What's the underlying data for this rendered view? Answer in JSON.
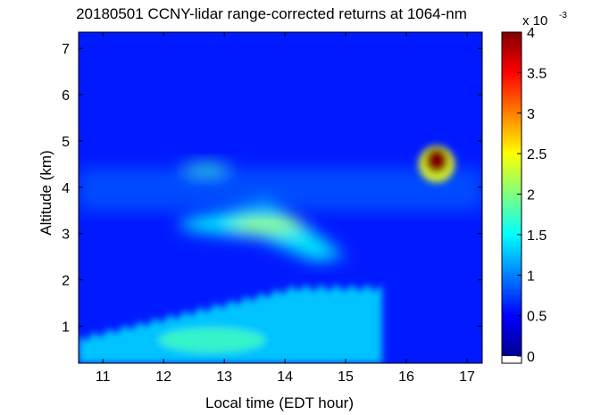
{
  "chart_data": {
    "type": "heatmap",
    "title": "20180501 CCNY-lidar range-corrected returns at 1064-nm",
    "xlabel": "Local time (EDT hour)",
    "ylabel": "Altitude (km)",
    "xlim": [
      10.6,
      17.25
    ],
    "ylim": [
      0.2,
      7.35
    ],
    "xticks": [
      "11",
      "12",
      "13",
      "14",
      "15",
      "16",
      "17"
    ],
    "yticks": [
      "1",
      "2",
      "3",
      "4",
      "5",
      "6",
      "7"
    ],
    "colorbar": {
      "ticks": [
        "0",
        "0.5",
        "1",
        "1.5",
        "2",
        "2.5",
        "3",
        "3.5",
        "4"
      ],
      "exponent_base": "x 10",
      "exponent": "-3",
      "range": [
        0,
        0.004
      ],
      "colormap": "jet"
    },
    "background_value": 0.0006,
    "features": [
      {
        "label": "boundary layer aerosol",
        "x": [
          10.6,
          15.6
        ],
        "y": [
          0.2,
          1.9
        ],
        "value": 0.0013
      },
      {
        "label": "aerosol layer",
        "x": [
          12.3,
          15.0
        ],
        "y": [
          2.4,
          3.8
        ],
        "value": 0.0019
      },
      {
        "label": "elevated layer",
        "x": [
          10.6,
          17.25
        ],
        "y": [
          3.5,
          4.4
        ],
        "value": 0.0009
      },
      {
        "label": "cloud",
        "x": [
          16.2,
          16.8
        ],
        "y": [
          4.1,
          4.9
        ],
        "value": 0.004
      }
    ],
    "grid": false
  }
}
